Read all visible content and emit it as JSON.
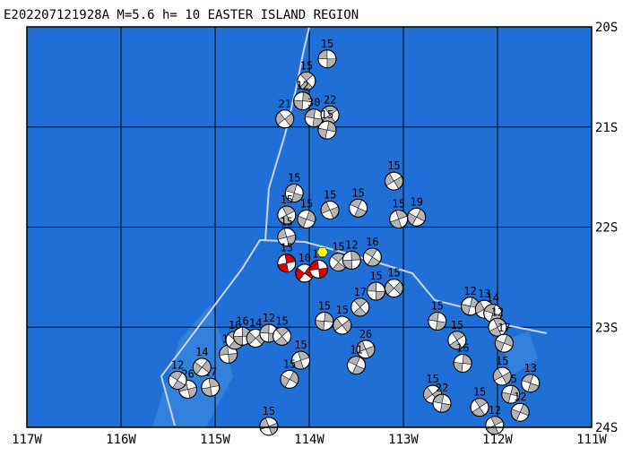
{
  "title": "E202207121928A M=5.6 h= 10 EASTER ISLAND REGION",
  "xlim": [
    -117,
    -111
  ],
  "ylim": [
    -24,
    -20
  ],
  "xticks": [
    {
      "value": -117,
      "label": "117W"
    },
    {
      "value": -116,
      "label": "116W"
    },
    {
      "value": -115,
      "label": "115W"
    },
    {
      "value": -114,
      "label": "114W"
    },
    {
      "value": -113,
      "label": "113W"
    },
    {
      "value": -112,
      "label": "112W"
    },
    {
      "value": -111,
      "label": "111W"
    }
  ],
  "yticks": [
    {
      "value": -20,
      "label": "20S"
    },
    {
      "value": -21,
      "label": "21S"
    },
    {
      "value": -22,
      "label": "22S"
    },
    {
      "value": -23,
      "label": "23S"
    },
    {
      "value": -24,
      "label": "24S"
    }
  ],
  "epicenter": {
    "lon": -113.86,
    "lat": -22.25,
    "color": "#ffff00"
  },
  "events": [
    {
      "lon": -113.81,
      "lat": -20.32,
      "depth": 15,
      "color": "#b4b4b4"
    },
    {
      "lon": -114.03,
      "lat": -20.54,
      "depth": 15,
      "color": "#b4b4b4"
    },
    {
      "lon": -114.07,
      "lat": -20.74,
      "depth": 12,
      "color": "#b4b4b4"
    },
    {
      "lon": -114.26,
      "lat": -20.92,
      "depth": 21,
      "color": "#b4b4b4"
    },
    {
      "lon": -113.95,
      "lat": -20.91,
      "depth": 30,
      "color": "#b4b4b4"
    },
    {
      "lon": -113.78,
      "lat": -20.88,
      "depth": 22,
      "color": "#b4b4b4"
    },
    {
      "lon": -113.81,
      "lat": -21.03,
      "depth": 15,
      "color": "#b4b4b4"
    },
    {
      "lon": -113.1,
      "lat": -21.54,
      "depth": 15,
      "color": "#b4b4b4"
    },
    {
      "lon": -114.16,
      "lat": -21.66,
      "depth": 15,
      "color": "#b4b4b4"
    },
    {
      "lon": -114.24,
      "lat": -21.88,
      "depth": 15,
      "color": "#b4b4b4"
    },
    {
      "lon": -114.03,
      "lat": -21.92,
      "depth": 15,
      "color": "#b4b4b4"
    },
    {
      "lon": -113.78,
      "lat": -21.83,
      "depth": 15,
      "color": "#b4b4b4"
    },
    {
      "lon": -113.48,
      "lat": -21.81,
      "depth": 15,
      "color": "#b4b4b4"
    },
    {
      "lon": -113.05,
      "lat": -21.92,
      "depth": 15,
      "color": "#b4b4b4"
    },
    {
      "lon": -112.86,
      "lat": -21.9,
      "depth": 19,
      "color": "#b4b4b4"
    },
    {
      "lon": -114.24,
      "lat": -22.1,
      "depth": 15,
      "color": "#b4b4b4"
    },
    {
      "lon": -113.33,
      "lat": -22.3,
      "depth": 16,
      "color": "#b4b4b4"
    },
    {
      "lon": -114.24,
      "lat": -22.36,
      "depth": 15,
      "color": "#e00000"
    },
    {
      "lon": -114.05,
      "lat": -22.46,
      "depth": 10,
      "color": "#e00000"
    },
    {
      "lon": -113.9,
      "lat": -22.42,
      "depth": 12,
      "color": "#e00000"
    },
    {
      "lon": -113.69,
      "lat": -22.35,
      "depth": 15,
      "color": "#b4b4b4"
    },
    {
      "lon": -113.55,
      "lat": -22.33,
      "depth": 12,
      "color": "#b4b4b4"
    },
    {
      "lon": -113.1,
      "lat": -22.61,
      "depth": 15,
      "color": "#b4b4b4"
    },
    {
      "lon": -113.29,
      "lat": -22.64,
      "depth": 15,
      "color": "#b4b4b4"
    },
    {
      "lon": -113.46,
      "lat": -22.8,
      "depth": 17,
      "color": "#b4b4b4"
    },
    {
      "lon": -113.84,
      "lat": -22.94,
      "depth": 15,
      "color": "#b4b4b4"
    },
    {
      "lon": -113.65,
      "lat": -22.98,
      "depth": 15,
      "color": "#b4b4b4"
    },
    {
      "lon": -112.64,
      "lat": -22.94,
      "depth": 15,
      "color": "#b4b4b4"
    },
    {
      "lon": -112.43,
      "lat": -23.13,
      "depth": 15,
      "color": "#b4b4b4"
    },
    {
      "lon": -112.29,
      "lat": -22.79,
      "depth": 12,
      "color": "#b4b4b4"
    },
    {
      "lon": -112.14,
      "lat": -22.82,
      "depth": 13,
      "color": "#b4b4b4"
    },
    {
      "lon": -112.05,
      "lat": -22.86,
      "depth": 14,
      "color": "#b4b4b4"
    },
    {
      "lon": -112.0,
      "lat": -23.0,
      "depth": 12,
      "color": "#b4b4b4"
    },
    {
      "lon": -111.93,
      "lat": -23.16,
      "depth": 17,
      "color": "#b4b4b4"
    },
    {
      "lon": -113.4,
      "lat": -23.22,
      "depth": 26,
      "color": "#b4b4b4"
    },
    {
      "lon": -113.5,
      "lat": -23.38,
      "depth": 11,
      "color": "#b4b4b4"
    },
    {
      "lon": -114.09,
      "lat": -23.33,
      "depth": 15,
      "color": "#b4b4b4"
    },
    {
      "lon": -114.21,
      "lat": -23.52,
      "depth": 15,
      "color": "#b4b4b4"
    },
    {
      "lon": -115.29,
      "lat": -23.62,
      "depth": 26,
      "color": "#b4b4b4"
    },
    {
      "lon": -115.4,
      "lat": -23.53,
      "depth": 12,
      "color": "#b4b4b4"
    },
    {
      "lon": -115.05,
      "lat": -23.6,
      "depth": 17,
      "color": "#b4b4b4"
    },
    {
      "lon": -115.14,
      "lat": -23.4,
      "depth": 14,
      "color": "#b4b4b4"
    },
    {
      "lon": -114.86,
      "lat": -23.27,
      "depth": 16,
      "color": "#b4b4b4"
    },
    {
      "lon": -114.79,
      "lat": -23.13,
      "depth": 16,
      "color": "#b4b4b4"
    },
    {
      "lon": -114.71,
      "lat": -23.09,
      "depth": 16,
      "color": "#b4b4b4"
    },
    {
      "lon": -114.57,
      "lat": -23.11,
      "depth": 14,
      "color": "#b4b4b4"
    },
    {
      "lon": -114.43,
      "lat": -23.06,
      "depth": 12,
      "color": "#b4b4b4"
    },
    {
      "lon": -114.29,
      "lat": -23.09,
      "depth": 15,
      "color": "#b4b4b4"
    },
    {
      "lon": -112.37,
      "lat": -23.36,
      "depth": 16,
      "color": "#b4b4b4"
    },
    {
      "lon": -112.69,
      "lat": -23.67,
      "depth": 15,
      "color": "#b4b4b4"
    },
    {
      "lon": -112.59,
      "lat": -23.76,
      "depth": 22,
      "color": "#b4b4b4"
    },
    {
      "lon": -112.19,
      "lat": -23.8,
      "depth": 15,
      "color": "#b4b4b4"
    },
    {
      "lon": -111.86,
      "lat": -23.67,
      "depth": 15,
      "color": "#b4b4b4"
    },
    {
      "lon": -111.95,
      "lat": -23.49,
      "depth": 15,
      "color": "#b4b4b4"
    },
    {
      "lon": -111.65,
      "lat": -23.56,
      "depth": 13,
      "color": "#b4b4b4"
    },
    {
      "lon": -112.03,
      "lat": -23.98,
      "depth": 12,
      "color": "#b4b4b4"
    },
    {
      "lon": -111.76,
      "lat": -23.85,
      "depth": 12,
      "color": "#b4b4b4"
    },
    {
      "lon": -114.43,
      "lat": -23.99,
      "depth": 15,
      "color": "#b4b4b4"
    }
  ]
}
